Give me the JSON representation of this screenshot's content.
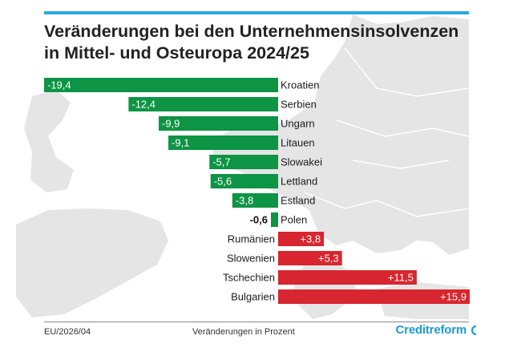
{
  "title_line1": "Veränderungen bei den Unternehmensinsolvenzen",
  "title_line2": "in Mittel- und Osteuropa 2024/25",
  "footer": {
    "source": "EU/2026/04",
    "unit_note": "Veränderungen in Prozent",
    "brand": "Creditreform"
  },
  "colors": {
    "negative": "#0d9444",
    "positive": "#d7262f",
    "accent": "#29a9e0",
    "map": "#e4e4e4"
  },
  "chart_data": {
    "type": "bar",
    "orientation": "horizontal",
    "categories": [
      "Kroatien",
      "Serbien",
      "Ungarn",
      "Litauen",
      "Slowakei",
      "Lettland",
      "Estland",
      "Polen",
      "Rumänien",
      "Slowenien",
      "Tschechien",
      "Bulgarien"
    ],
    "values": [
      -19.4,
      -12.4,
      -9.9,
      -9.1,
      -5.7,
      -5.6,
      -3.8,
      -0.6,
      3.8,
      5.3,
      11.5,
      15.9
    ],
    "value_labels": [
      "-19,4",
      "-12,4",
      "-9,9",
      "-9,1",
      "-5,7",
      "-5,6",
      "-3,8",
      "-0,6",
      "+3,8",
      "+5,3",
      "+11,5",
      "+15,9"
    ],
    "title": "Veränderungen bei den Unternehmensinsolvenzen in Mittel- und Osteuropa 2024/25",
    "xlabel": "Veränderungen in Prozent",
    "ylabel": "",
    "xlim": [
      -19.4,
      15.9
    ],
    "grid": false,
    "legend": "none"
  }
}
